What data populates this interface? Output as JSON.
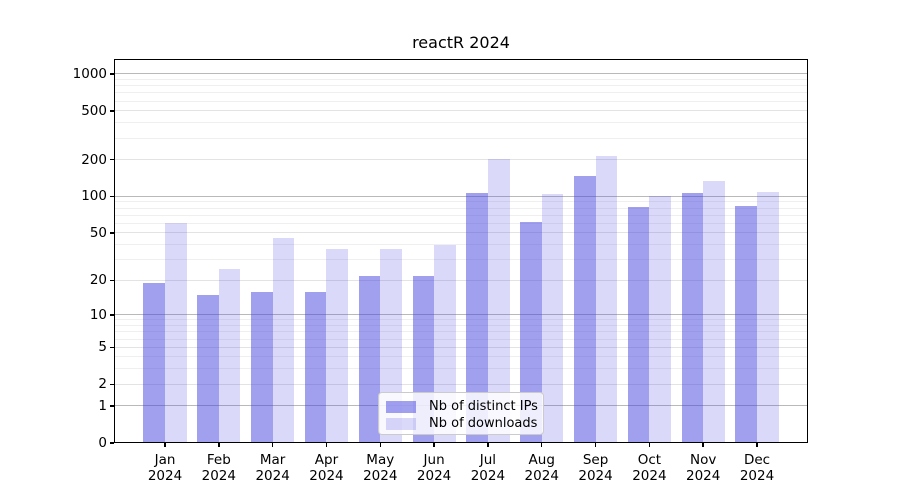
{
  "title": "reactR 2024",
  "chart_data": {
    "type": "bar",
    "title": "reactR 2024",
    "categories": [
      "Jan",
      "Feb",
      "Mar",
      "Apr",
      "May",
      "Jun",
      "Jul",
      "Aug",
      "Sep",
      "Oct",
      "Nov",
      "Dec"
    ],
    "year_label": "2024",
    "series": [
      {
        "name": "Nb of distinct IPs",
        "color": "rgba(68,66,224,0.5)",
        "values": [
          19,
          15,
          16,
          16,
          22,
          22,
          107,
          62,
          147,
          82,
          107,
          84
        ]
      },
      {
        "name": "Nb of downloads",
        "color": "rgba(68,66,224,0.2)",
        "values": [
          61,
          25,
          45,
          37,
          37,
          40,
          203,
          105,
          215,
          101,
          135,
          108
        ]
      }
    ],
    "xlabel": "",
    "ylabel": "",
    "yscale": "log10(value+1)",
    "y_ticks": [
      1000,
      500,
      200,
      100,
      50,
      20,
      10,
      5,
      2,
      1,
      0
    ],
    "ylim": [
      0,
      1320
    ],
    "grid": true,
    "legend_position": "inside-bottom-center",
    "colors": {
      "grid_major": "#b9b9b9",
      "grid_labeled": "#e3e3e3",
      "grid_minor": "#efefef",
      "spine": "#000000"
    }
  }
}
